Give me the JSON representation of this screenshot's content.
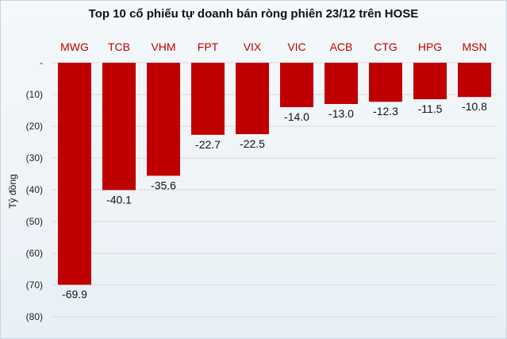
{
  "chart_data": {
    "type": "bar",
    "title": "Top 10 cổ phiếu tự doanh bán ròng phiên 23/12 trên HOSE",
    "ylabel": "Tỷ đồng",
    "xlabel": "",
    "categories": [
      "MWG",
      "TCB",
      "VHM",
      "FPT",
      "VIX",
      "VIC",
      "ACB",
      "CTG",
      "HPG",
      "MSN"
    ],
    "values": [
      -69.9,
      -40.1,
      -35.6,
      -22.7,
      -22.5,
      -14.0,
      -13.0,
      -12.3,
      -11.5,
      -10.8
    ],
    "value_labels": [
      "-69.9",
      "-40.1",
      "-35.6",
      "-22.7",
      "-22.5",
      "-14.0",
      "-13.0",
      "-12.3",
      "-11.5",
      "-10.8"
    ],
    "ylim": [
      -80,
      0
    ],
    "yticks": [
      0,
      -10,
      -20,
      -30,
      -40,
      -50,
      -60,
      -70,
      -80
    ],
    "ytick_labels": [
      "-",
      "(10)",
      "(20)",
      "(30)",
      "(40)",
      "(50)",
      "(60)",
      "(70)",
      "(80)"
    ],
    "grid": true,
    "legend": "none",
    "colors": {
      "bar": "#c00000",
      "category_label": "#c00000",
      "grid": "#d9d9d9",
      "axis_text": "#222222"
    }
  }
}
